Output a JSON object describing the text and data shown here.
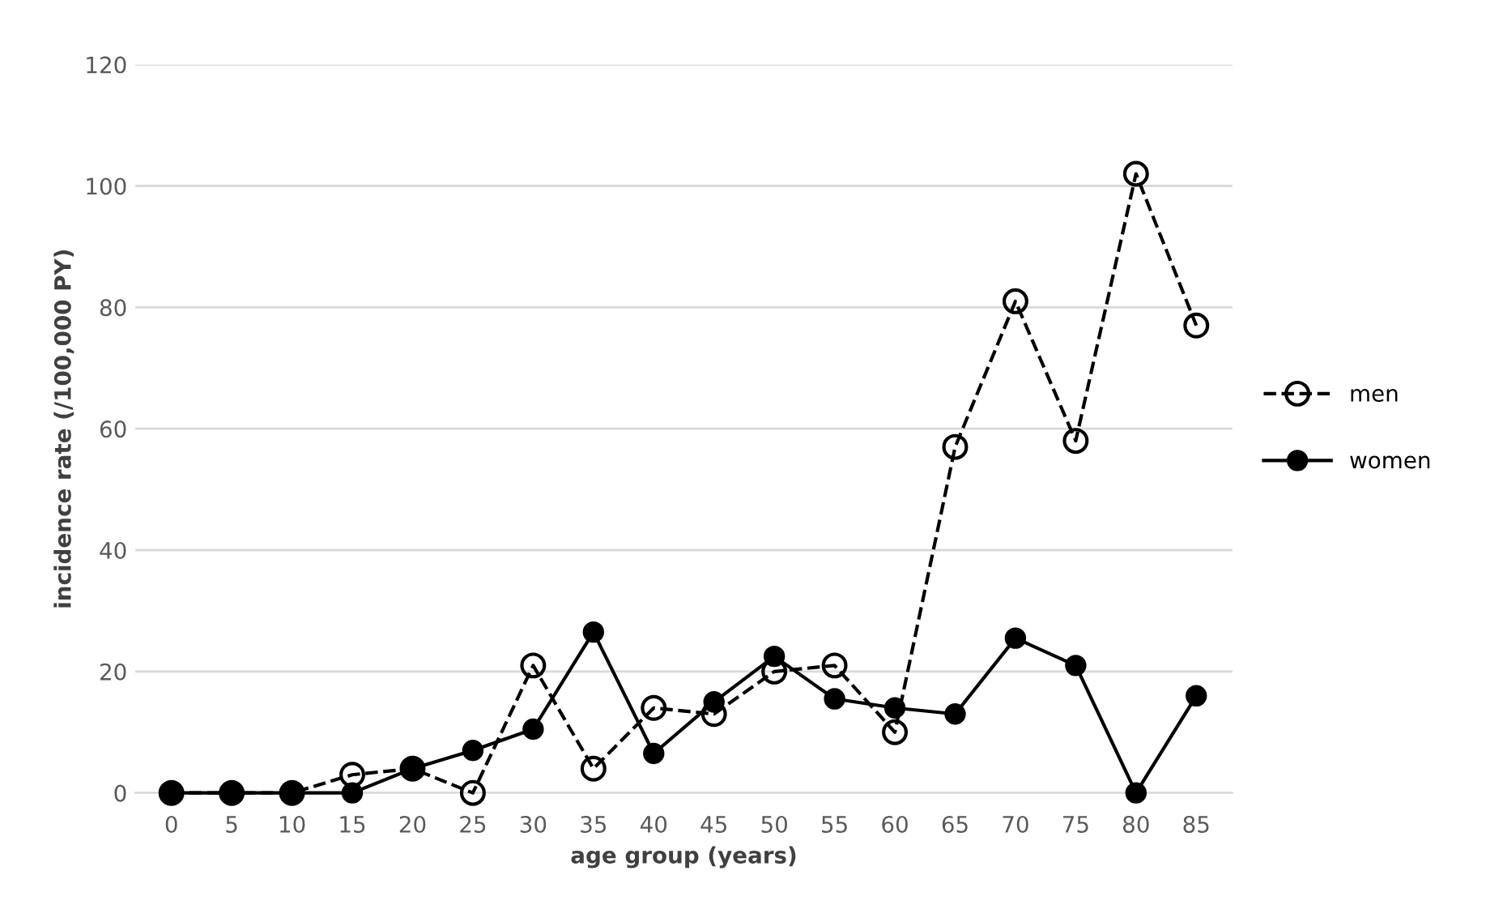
{
  "chart_data": {
    "type": "line",
    "xlabel": "age group (years)",
    "ylabel": "incidence rate (/100,000 PY)",
    "categories": [
      "0",
      "5",
      "10",
      "15",
      "20",
      "25",
      "30",
      "35",
      "40",
      "45",
      "50",
      "55",
      "60",
      "65",
      "70",
      "75",
      "80",
      "85"
    ],
    "series": [
      {
        "name": "men",
        "color": "#000000",
        "line_style": "dashed",
        "values": [
          0,
          0,
          0,
          3,
          4,
          0,
          21,
          4,
          14,
          13,
          20,
          21,
          10,
          57,
          81,
          58,
          102,
          77
        ]
      },
      {
        "name": "women",
        "color": "#000000",
        "line_style": "solid",
        "values": [
          0,
          0,
          0,
          0,
          4,
          7,
          10.5,
          26.5,
          6.5,
          15,
          22.5,
          15.5,
          14,
          13,
          25.5,
          21,
          0,
          16
        ]
      }
    ],
    "ylim": [
      0,
      120
    ],
    "yticks": [
      0,
      20,
      40,
      60,
      80,
      100,
      120
    ],
    "grid": "y",
    "legend": "right",
    "marker": "circle"
  }
}
